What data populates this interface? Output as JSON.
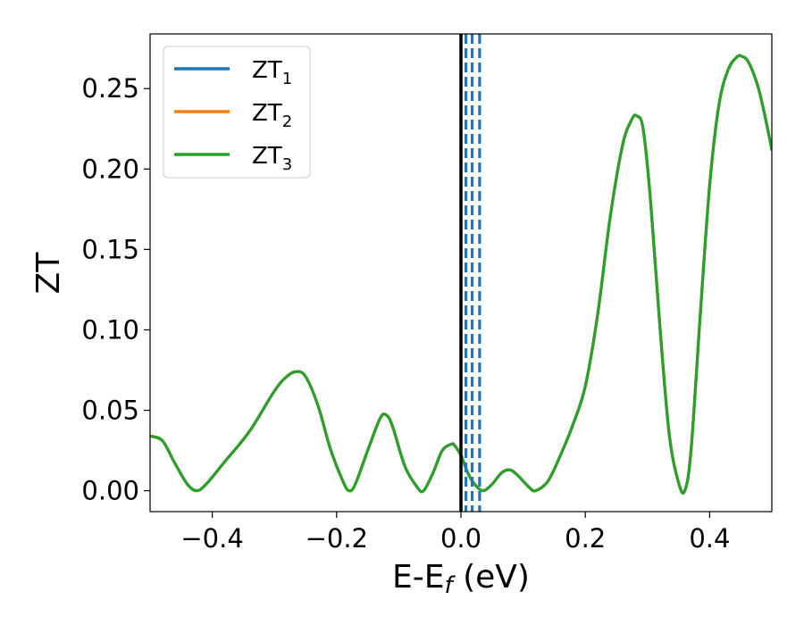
{
  "chart_data": {
    "type": "line",
    "title": "",
    "xlabel": "E-E",
    "xlabel_sub": "f",
    "xlabel_unit": " (eV)",
    "ylabel": "ZT",
    "xlim": [
      -0.5,
      0.5
    ],
    "ylim": [
      -0.013,
      0.284
    ],
    "xticks": [
      -0.4,
      -0.2,
      0.0,
      0.2,
      0.4
    ],
    "xtick_labels": [
      "−0.4",
      "−0.2",
      "0.0",
      "0.2",
      "0.4"
    ],
    "yticks": [
      0.0,
      0.05,
      0.1,
      0.15,
      0.2,
      0.25
    ],
    "ytick_labels": [
      "0.00",
      "0.05",
      "0.10",
      "0.15",
      "0.20",
      "0.25"
    ],
    "grid": false,
    "legend_position": "top-left",
    "fermi_line": {
      "x": 0.0,
      "color": "#000000"
    },
    "dashed_lines": {
      "x": [
        0.008,
        0.018,
        0.03
      ],
      "color": "#1f77b4"
    },
    "series": [
      {
        "name": "ZT",
        "sub": "1",
        "color": "#1f77b4"
      },
      {
        "name": "ZT",
        "sub": "2",
        "color": "#ff7f0e"
      },
      {
        "name": "ZT",
        "sub": "3",
        "color": "#2ca02c"
      }
    ],
    "curve": {
      "x": [
        -0.5,
        -0.48,
        -0.46,
        -0.44,
        -0.425,
        -0.41,
        -0.38,
        -0.34,
        -0.3,
        -0.28,
        -0.265,
        -0.25,
        -0.23,
        -0.21,
        -0.19,
        -0.18,
        -0.17,
        -0.15,
        -0.13,
        -0.12,
        -0.11,
        -0.09,
        -0.07,
        -0.06,
        -0.045,
        -0.03,
        -0.015,
        -0.01,
        0.0,
        0.01,
        0.02,
        0.035,
        0.05,
        0.065,
        0.078,
        0.09,
        0.11,
        0.12,
        0.14,
        0.16,
        0.18,
        0.2,
        0.22,
        0.24,
        0.26,
        0.275,
        0.283,
        0.293,
        0.305,
        0.32,
        0.335,
        0.35,
        0.36,
        0.37,
        0.385,
        0.4,
        0.415,
        0.43,
        0.445,
        0.452,
        0.46,
        0.47,
        0.48,
        0.49,
        0.5
      ],
      "y": [
        0.034,
        0.031,
        0.017,
        0.004,
        0.0,
        0.004,
        0.018,
        0.037,
        0.062,
        0.071,
        0.074,
        0.071,
        0.053,
        0.026,
        0.006,
        0.0,
        0.004,
        0.025,
        0.045,
        0.047,
        0.04,
        0.015,
        0.002,
        0.0,
        0.011,
        0.025,
        0.029,
        0.028,
        0.022,
        0.012,
        0.005,
        0.0,
        0.004,
        0.011,
        0.013,
        0.01,
        0.002,
        0.0,
        0.006,
        0.022,
        0.041,
        0.065,
        0.11,
        0.17,
        0.215,
        0.231,
        0.233,
        0.225,
        0.18,
        0.102,
        0.035,
        0.005,
        0.0,
        0.025,
        0.11,
        0.19,
        0.24,
        0.262,
        0.27,
        0.27,
        0.268,
        0.26,
        0.248,
        0.231,
        0.212
      ]
    }
  }
}
